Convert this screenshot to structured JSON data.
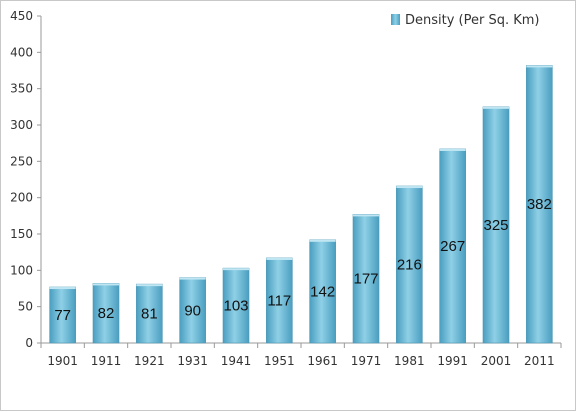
{
  "chart_data": {
    "type": "bar",
    "title": "",
    "xlabel": "",
    "ylabel": "",
    "categories": [
      "1901",
      "1911",
      "1921",
      "1931",
      "1941",
      "1951",
      "1961",
      "1971",
      "1981",
      "1991",
      "2001",
      "2011"
    ],
    "series": [
      {
        "name": "Density (Per Sq. Km)",
        "values": [
          77,
          82,
          81,
          90,
          103,
          117,
          142,
          177,
          216,
          267,
          325,
          382
        ],
        "color": "#6cb9d3"
      }
    ],
    "data_labels": [
      "77",
      "82",
      "81",
      "90",
      "103",
      "117",
      "142",
      "177",
      "216",
      "267",
      "325",
      "382"
    ],
    "ylim": [
      0,
      450
    ],
    "yticks": [
      0,
      50,
      100,
      150,
      200,
      250,
      300,
      350,
      400,
      450
    ],
    "grid": false,
    "legend_position": "top-right"
  }
}
